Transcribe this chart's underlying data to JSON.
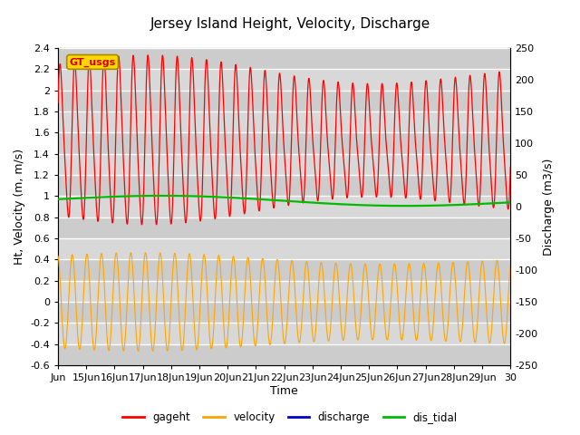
{
  "title": "Jersey Island Height, Velocity, Discharge",
  "xlabel": "Time",
  "ylabel_left": "Ht, Velocity (m, m/s)",
  "ylabel_right": "Discharge (m3/s)",
  "ylim_left": [
    -0.6,
    2.4
  ],
  "ylim_right": [
    -250,
    250
  ],
  "xlim_start": 14,
  "xlim_end": 30,
  "xtick_labels": [
    "Jun",
    "15Jun",
    "16Jun",
    "17Jun",
    "18Jun",
    "19Jun",
    "20Jun",
    "21Jun",
    "22Jun",
    "23Jun",
    "24Jun",
    "25Jun",
    "26Jun",
    "27Jun",
    "28Jun",
    "29Jun",
    "30"
  ],
  "xtick_positions": [
    14,
    15,
    16,
    17,
    18,
    19,
    20,
    21,
    22,
    23,
    24,
    25,
    26,
    27,
    28,
    29,
    30
  ],
  "color_gageht": "#ff0000",
  "color_velocity": "#ffa500",
  "color_discharge": "#0000cd",
  "color_dis_tidal": "#00bb00",
  "legend_label_gageht": "gageht",
  "legend_label_velocity": "velocity",
  "legend_label_discharge": "discharge",
  "legend_label_dis_tidal": "dis_tidal",
  "watermark_text": "GT_usgs",
  "background_color": "#ffffff",
  "plot_bg_color": "#d8d8d8",
  "title_fontsize": 11,
  "axis_fontsize": 9,
  "tick_fontsize": 8,
  "tidal_period": 0.518,
  "n_points": 3000,
  "xlim_data_start": 14.0,
  "xlim_data_end": 30.0
}
